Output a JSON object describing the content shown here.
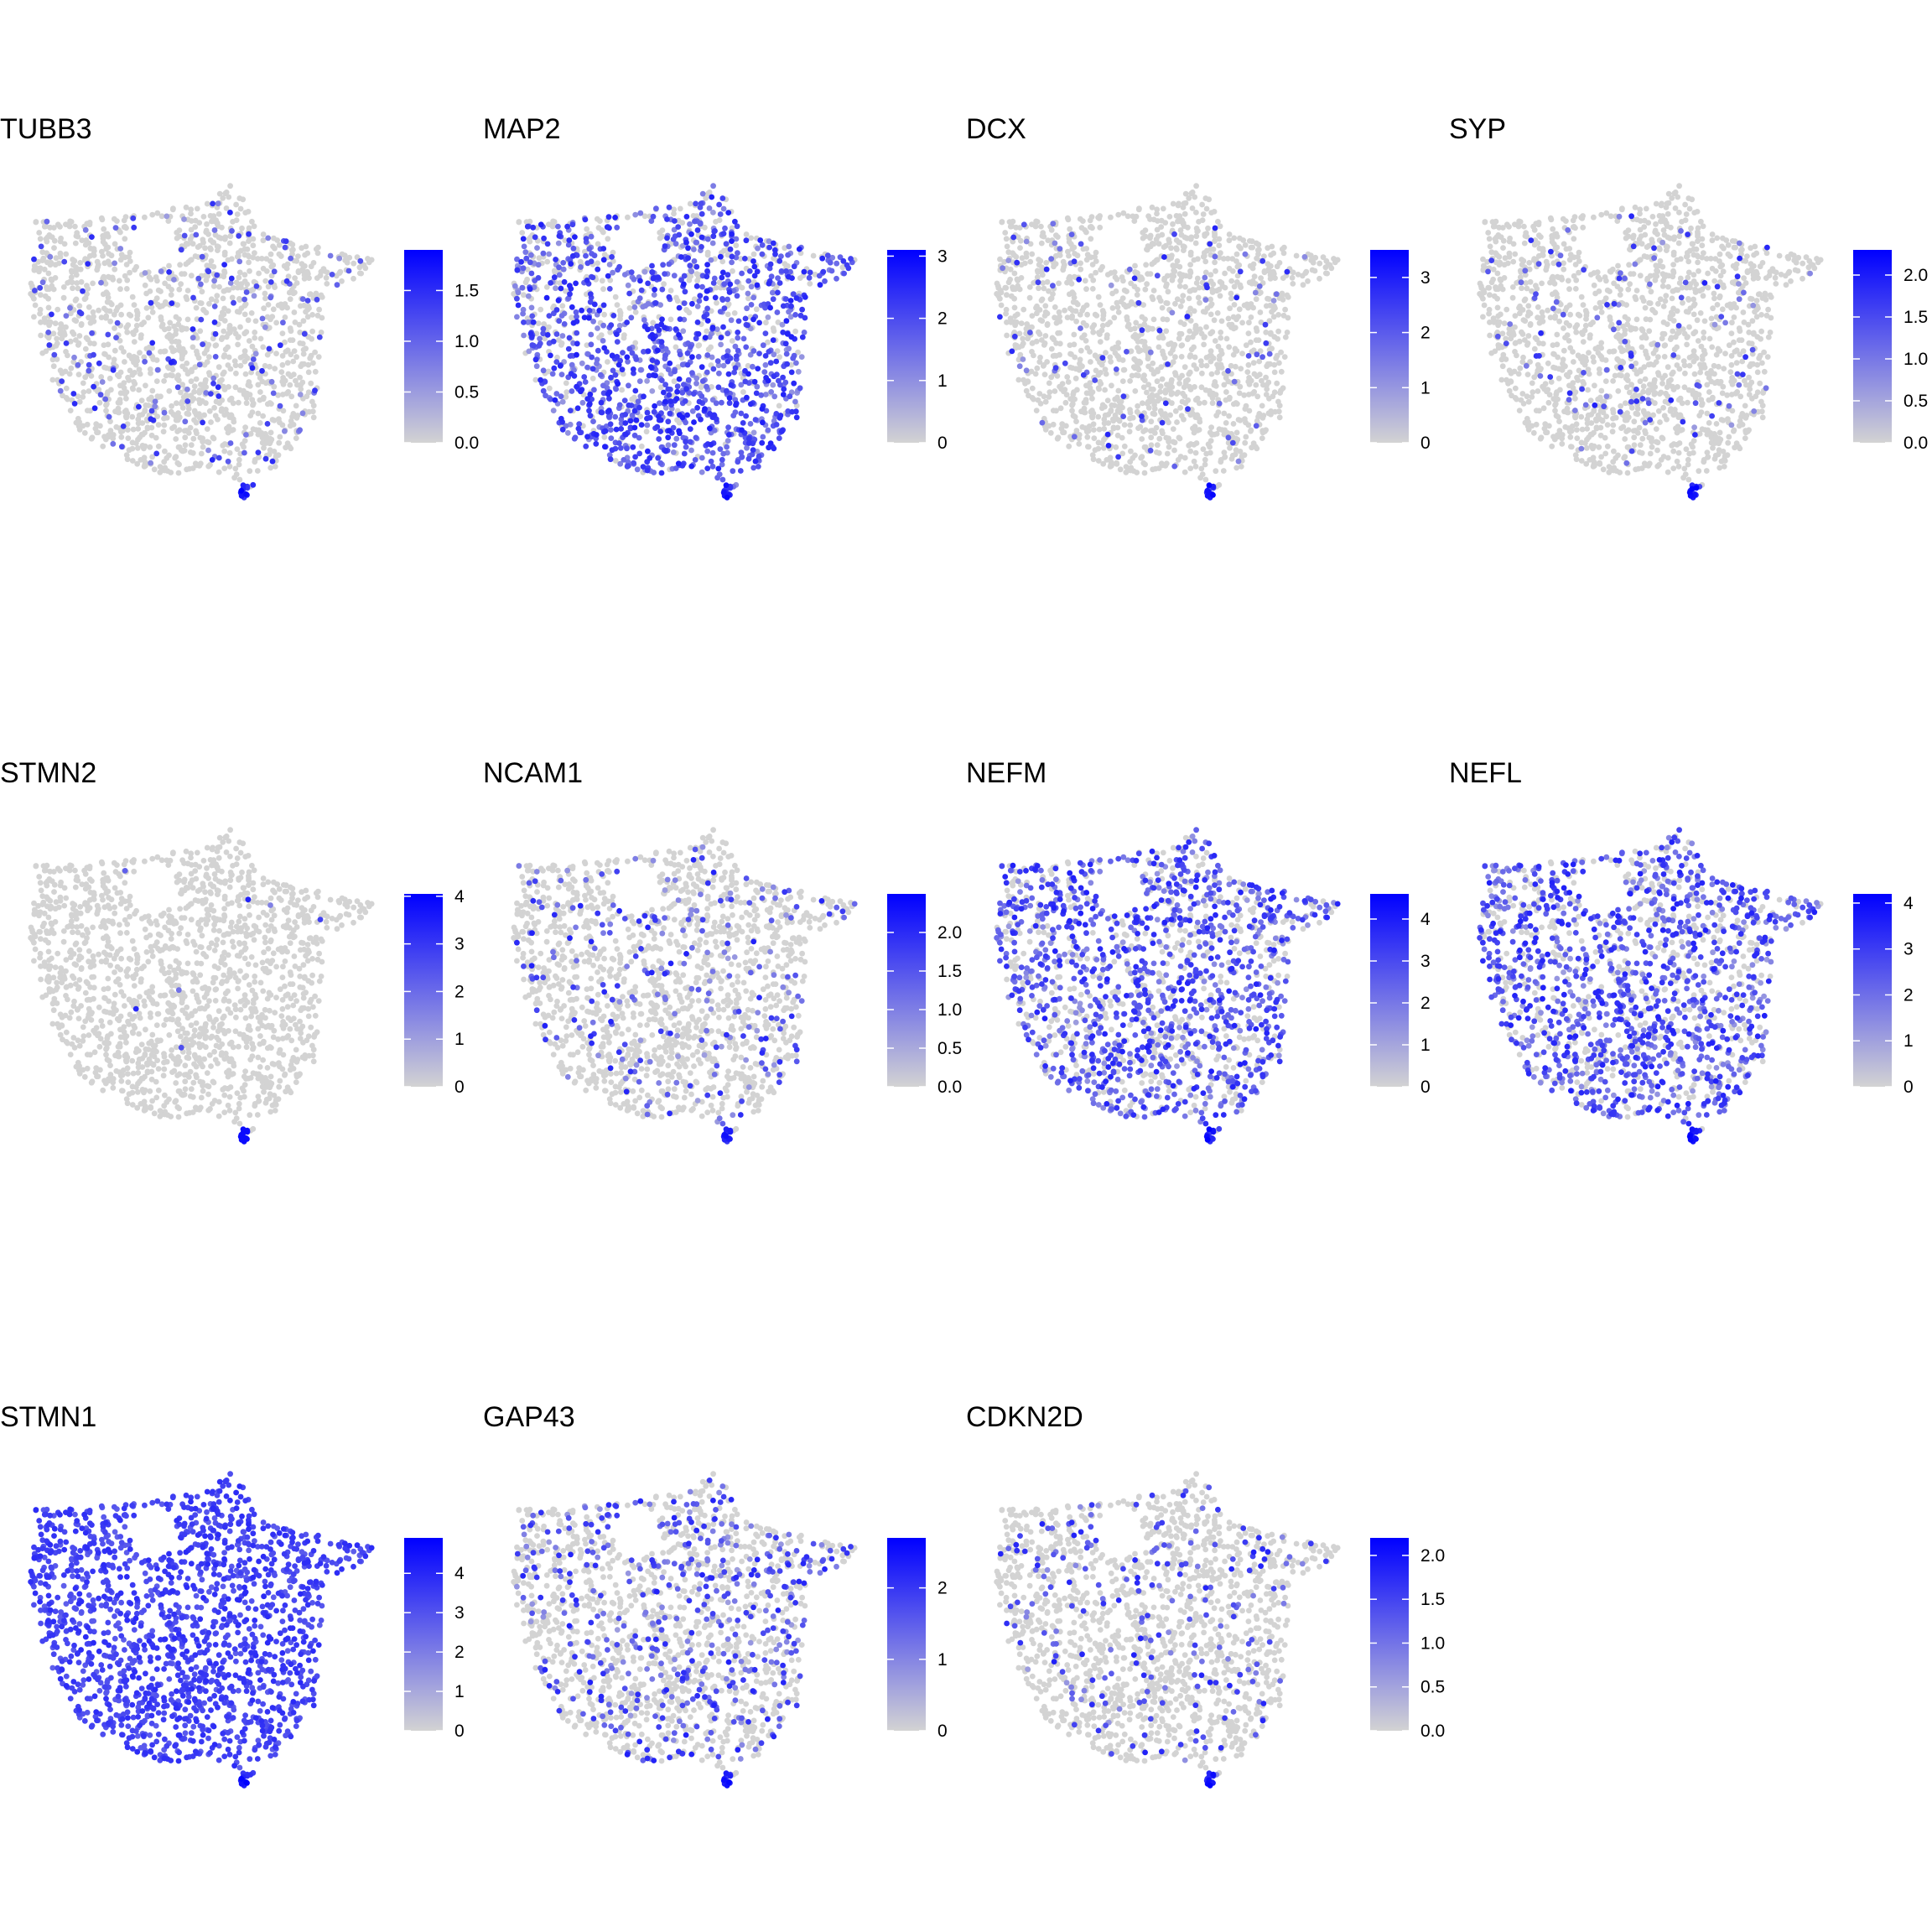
{
  "figure": {
    "low_color": "#d3d3d3",
    "high_color": "#0000ff"
  },
  "chart_data": [
    {
      "type": "scatter",
      "title": "TUBB3",
      "ticks": [
        "0.0",
        "0.5",
        "1.0",
        "1.5"
      ],
      "tick_values": [
        0,
        0.5,
        1.0,
        1.5
      ],
      "max": 1.9,
      "pattern": "sparse",
      "density": 0.1
    },
    {
      "type": "scatter",
      "title": "MAP2",
      "ticks": [
        "0",
        "1",
        "2",
        "3"
      ],
      "tick_values": [
        0,
        1,
        2,
        3
      ],
      "max": 3.1,
      "pattern": "high-se",
      "density": 0.75
    },
    {
      "type": "scatter",
      "title": "DCX",
      "ticks": [
        "0",
        "1",
        "2",
        "3"
      ],
      "tick_values": [
        0,
        1,
        2,
        3
      ],
      "max": 3.5,
      "pattern": "sparse",
      "density": 0.06
    },
    {
      "type": "scatter",
      "title": "SYP",
      "ticks": [
        "0.0",
        "0.5",
        "1.0",
        "1.5",
        "2.0"
      ],
      "tick_values": [
        0,
        0.5,
        1.0,
        1.5,
        2.0
      ],
      "max": 2.3,
      "pattern": "sparse",
      "density": 0.07
    },
    {
      "type": "scatter",
      "title": "STMN2",
      "ticks": [
        "0",
        "1",
        "2",
        "3",
        "4"
      ],
      "tick_values": [
        0,
        1,
        2,
        3,
        4
      ],
      "max": 4.05,
      "pattern": "none",
      "density": 0.005
    },
    {
      "type": "scatter",
      "title": "NCAM1",
      "ticks": [
        "0.0",
        "0.5",
        "1.0",
        "1.5",
        "2.0"
      ],
      "tick_values": [
        0,
        0.5,
        1.0,
        1.5,
        2.0
      ],
      "max": 2.5,
      "pattern": "sparse",
      "density": 0.14
    },
    {
      "type": "scatter",
      "title": "NEFM",
      "ticks": [
        "0",
        "1",
        "2",
        "3",
        "4"
      ],
      "tick_values": [
        0,
        1,
        2,
        3,
        4
      ],
      "max": 4.6,
      "pattern": "broad",
      "density": 0.65
    },
    {
      "type": "scatter",
      "title": "NEFL",
      "ticks": [
        "0",
        "1",
        "2",
        "3",
        "4"
      ],
      "tick_values": [
        0,
        1,
        2,
        3,
        4
      ],
      "max": 4.2,
      "pattern": "broad",
      "density": 0.65
    },
    {
      "type": "scatter",
      "title": "STMN1",
      "ticks": [
        "0",
        "1",
        "2",
        "3",
        "4"
      ],
      "tick_values": [
        0,
        1,
        2,
        3,
        4
      ],
      "max": 4.9,
      "pattern": "uniform",
      "density": 0.97
    },
    {
      "type": "scatter",
      "title": "GAP43",
      "ticks": [
        "0",
        "1",
        "2"
      ],
      "tick_values": [
        0,
        1,
        2
      ],
      "max": 2.7,
      "pattern": "high-ne",
      "density": 0.35
    },
    {
      "type": "scatter",
      "title": "CDKN2D",
      "ticks": [
        "0.0",
        "0.5",
        "1.0",
        "1.5",
        "2.0"
      ],
      "tick_values": [
        0,
        0.5,
        1.0,
        1.5,
        2.0
      ],
      "max": 2.2,
      "pattern": "sparse",
      "density": 0.12
    }
  ]
}
